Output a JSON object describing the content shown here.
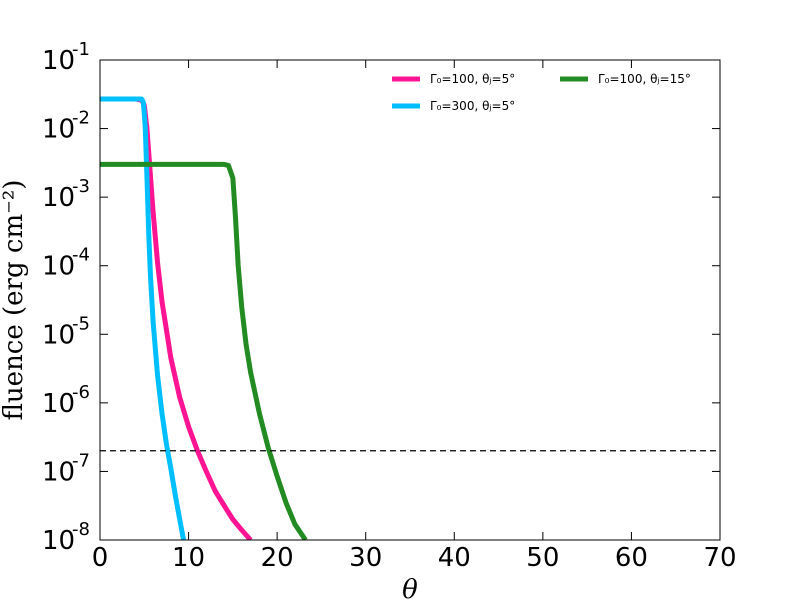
{
  "chart_data": {
    "type": "line",
    "title": "",
    "xlabel": "θ",
    "ylabel": "fluence (erg cm⁻²)",
    "xlim": [
      0,
      70
    ],
    "ylim": [
      1e-08,
      0.1
    ],
    "yscale": "log",
    "grid": false,
    "legend_position": "top-right",
    "x_ticks": [
      {
        "value": 0,
        "label": "0"
      },
      {
        "value": 10,
        "label": "10"
      },
      {
        "value": 20,
        "label": "20"
      },
      {
        "value": 30,
        "label": "30"
      },
      {
        "value": 40,
        "label": "40"
      },
      {
        "value": 50,
        "label": "50"
      },
      {
        "value": 60,
        "label": "60"
      },
      {
        "value": 70,
        "label": "70"
      }
    ],
    "y_ticks": [
      {
        "value": 1e-08,
        "base": "10",
        "exp": "-8"
      },
      {
        "value": 1e-07,
        "base": "10",
        "exp": "-7"
      },
      {
        "value": 1e-06,
        "base": "10",
        "exp": "-6"
      },
      {
        "value": 1e-05,
        "base": "10",
        "exp": "-5"
      },
      {
        "value": 0.0001,
        "base": "10",
        "exp": "-4"
      },
      {
        "value": 0.001,
        "base": "10",
        "exp": "-3"
      },
      {
        "value": 0.01,
        "base": "10",
        "exp": "-2"
      },
      {
        "value": 0.1,
        "base": "10",
        "exp": "-1"
      }
    ],
    "series": [
      {
        "name": "Γ₀=100, θⱼ=5°",
        "color": "#ff1493",
        "x": [
          0,
          4.0,
          4.7,
          5.0,
          5.3,
          5.6,
          6.0,
          6.5,
          7.0,
          8.0,
          9.0,
          10.0,
          11.0,
          12.0,
          13.0,
          14.0,
          15.0,
          16.0,
          17.0
        ],
        "y": [
          0.027,
          0.027,
          0.026,
          0.022,
          0.01,
          0.003,
          0.0006,
          0.00011,
          3e-05,
          4.5e-06,
          1.2e-06,
          4.5e-07,
          2e-07,
          1e-07,
          5.2e-08,
          3.2e-08,
          2e-08,
          1.4e-08,
          1e-08
        ]
      },
      {
        "name": "Γ₀=300, θⱼ=5°",
        "color": "#00bfff",
        "x": [
          0,
          4.7,
          4.9,
          5.1,
          5.3,
          5.5,
          5.7,
          6.0,
          6.5,
          7.0,
          7.5,
          8.0,
          8.5,
          9.0,
          9.5
        ],
        "y": [
          0.027,
          0.027,
          0.024,
          0.011,
          0.002,
          0.0003,
          7e-05,
          1.5e-05,
          2.5e-06,
          7e-07,
          2.5e-07,
          1.1e-07,
          4.5e-08,
          2e-08,
          9e-09
        ]
      },
      {
        "name": "Γ₀=100, θⱼ=15°",
        "color": "#228b22",
        "x": [
          0,
          14.0,
          14.5,
          15.0,
          15.3,
          15.6,
          16.0,
          16.5,
          17.0,
          18.0,
          19.0,
          20.0,
          21.0,
          22.0,
          23.2
        ],
        "y": [
          0.003,
          0.003,
          0.0029,
          0.0019,
          0.0005,
          0.0001,
          2.5e-05,
          7e-06,
          2.8e-06,
          7e-07,
          2.2e-07,
          8.5e-08,
          3.5e-08,
          1.7e-08,
          1e-08
        ]
      }
    ],
    "reference_line": {
      "y": 2e-07,
      "style": "dashed",
      "color": "#000000"
    }
  }
}
